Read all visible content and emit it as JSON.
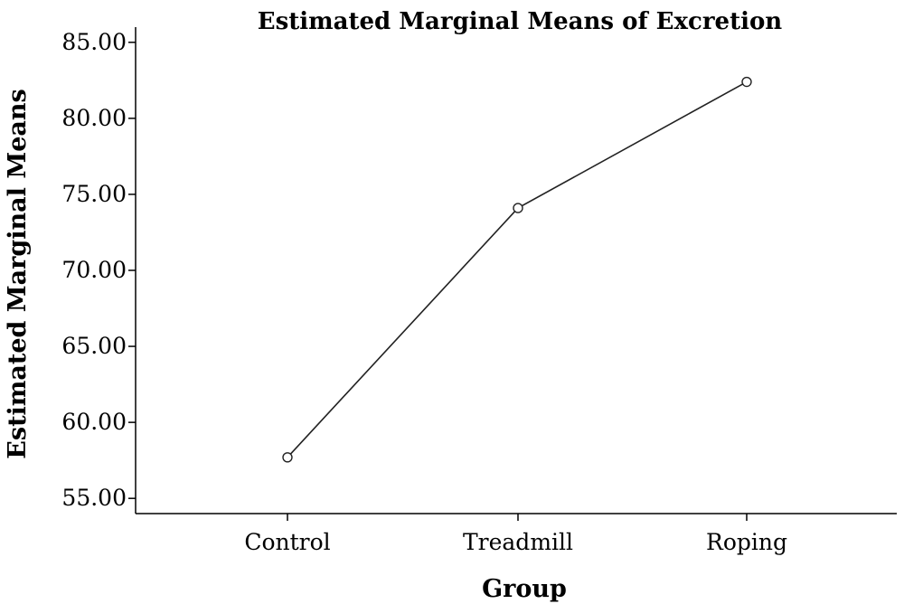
{
  "chart_data": {
    "type": "line",
    "title": "Estimated Marginal Means of Excretion",
    "xlabel": "Group",
    "ylabel": "Estimated Marginal Means",
    "categories": [
      "Control",
      "Treadmill",
      "Roping"
    ],
    "series": [
      {
        "values": [
          57.7,
          74.1,
          82.4
        ]
      }
    ],
    "ylim": [
      54.0,
      86.0
    ],
    "yticks": [
      55,
      60,
      65,
      70,
      75,
      80,
      85
    ],
    "ytick_labels": [
      "55.00",
      "60.00",
      "65.00",
      "70.00",
      "75.00",
      "80.00",
      "85.00"
    ],
    "grid": false,
    "marker": "open-circle",
    "line_color": "#222222"
  }
}
